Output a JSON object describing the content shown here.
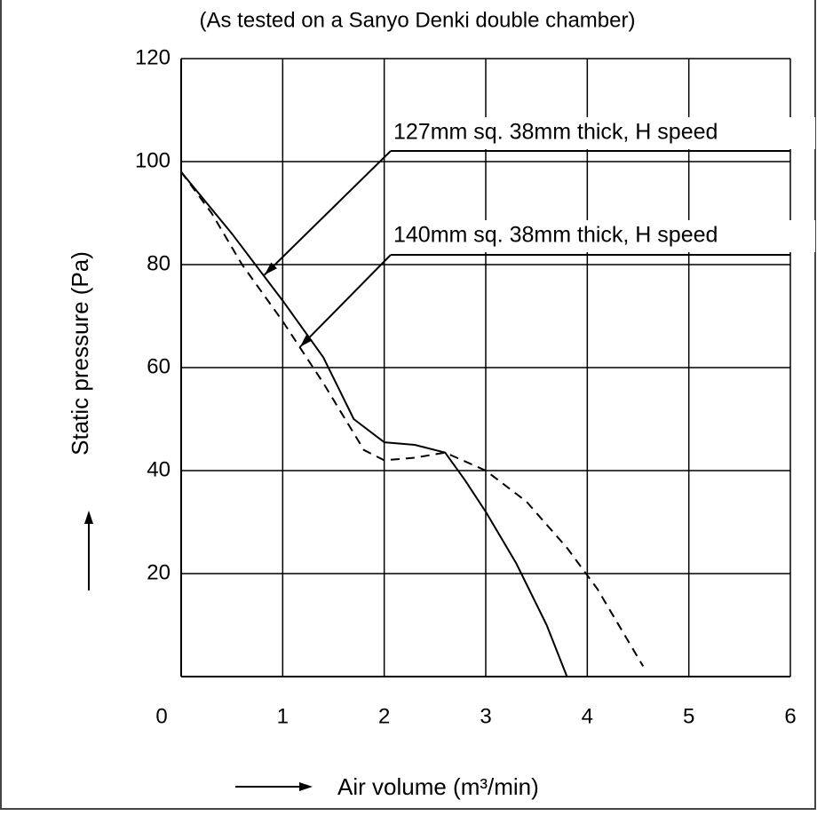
{
  "chart_data": {
    "type": "line",
    "title": "(As tested on a Sanyo Denki double chamber)",
    "x_label": "Air volume (m³/min)",
    "y_label": "Static pressure (Pa)",
    "xlim": [
      0,
      6
    ],
    "xticks": [
      0,
      1,
      2,
      3,
      4,
      5,
      6
    ],
    "ylim": [
      0,
      120
    ],
    "yticks": [
      20,
      40,
      60,
      80,
      100,
      120
    ],
    "grid": true,
    "series": [
      {
        "name": "127mm sq. 38mm thick, H speed",
        "color": "#000000",
        "linestyle": "solid",
        "x": [
          0,
          0.5,
          1,
          1.4,
          1.7,
          2,
          2.3,
          2.6,
          2.8,
          3,
          3.3,
          3.6,
          3.8
        ],
        "values": [
          98,
          86,
          73,
          62,
          50,
          45.5,
          45,
          43.5,
          38,
          32,
          22,
          10,
          0
        ]
      },
      {
        "name": "140mm sq. 38mm thick, H speed",
        "color": "#000000",
        "linestyle": "dashed",
        "x": [
          0,
          0.3,
          0.6,
          1,
          1.4,
          1.8,
          2,
          2.3,
          2.6,
          3,
          3.4,
          3.8,
          4.1,
          4.4,
          4.55
        ],
        "values": [
          98,
          90,
          80,
          69,
          57,
          44,
          42,
          42.5,
          43.5,
          40,
          34,
          25,
          17,
          7,
          2
        ]
      }
    ],
    "annotations": [
      {
        "text": "127mm sq. 38mm thick, H speed",
        "x": 0.82,
        "y": 78
      },
      {
        "text": "140mm sq. 38mm thick, H speed",
        "x": 1.17,
        "y": 64
      }
    ]
  }
}
